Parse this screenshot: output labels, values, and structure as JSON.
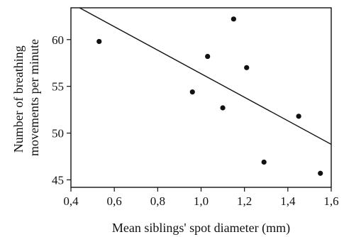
{
  "chart_data": {
    "type": "scatter",
    "title": "",
    "xlabel": "Mean siblings' spot diameter (mm)",
    "ylabel_lines": [
      "Number of breathing",
      "movements per minute"
    ],
    "xlim": [
      0.4,
      1.6
    ],
    "ylim": [
      44.2,
      63.4
    ],
    "x_ticks": [
      0.4,
      0.6,
      0.8,
      1.0,
      1.2,
      1.4,
      1.6
    ],
    "x_tick_labels": [
      "0,4",
      "0,6",
      "0,8",
      "1,0",
      "1,2",
      "1,4",
      "1,6"
    ],
    "y_ticks": [
      45,
      50,
      55,
      60
    ],
    "y_tick_labels": [
      "45",
      "50",
      "55",
      "60"
    ],
    "grid": false,
    "legend": "none",
    "points": [
      {
        "x": 0.53,
        "y": 59.8
      },
      {
        "x": 0.96,
        "y": 54.4
      },
      {
        "x": 1.03,
        "y": 58.2
      },
      {
        "x": 1.1,
        "y": 52.7
      },
      {
        "x": 1.15,
        "y": 62.2
      },
      {
        "x": 1.21,
        "y": 57.0
      },
      {
        "x": 1.29,
        "y": 46.9
      },
      {
        "x": 1.45,
        "y": 51.8
      },
      {
        "x": 1.55,
        "y": 45.7
      }
    ],
    "regression_line": {
      "x": [
        0.4,
        1.6
      ],
      "y": [
        63.9,
        48.8
      ]
    },
    "colors": {
      "axis": "#111111",
      "points": "#111111",
      "line": "#111111"
    }
  }
}
